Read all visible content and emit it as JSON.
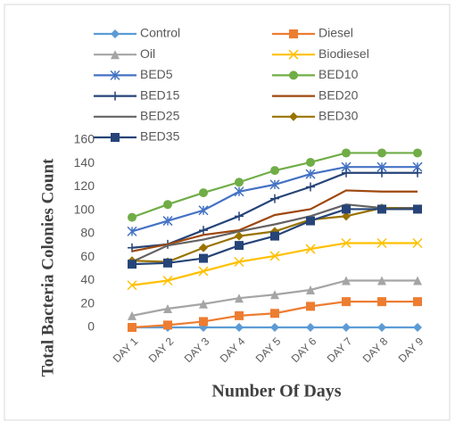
{
  "chart_data": {
    "type": "line",
    "x_label": "Number Of Days",
    "y_label": "Total Bacteria Colonies Count",
    "categories": [
      "DAY 1",
      "DAY 2",
      "DAY 3",
      "DAY 4",
      "DAY 5",
      "DAY 6",
      "DAY 7",
      "DAY 8",
      "DAY 9"
    ],
    "ylim": [
      0,
      160
    ],
    "yticks": [
      0,
      20,
      40,
      60,
      80,
      100,
      120,
      140,
      160
    ],
    "grid": false,
    "series": [
      {
        "name": "Control",
        "color": "#5b9bd5",
        "marker": "diamond",
        "values": [
          0,
          0,
          0,
          0,
          0,
          0,
          0,
          0,
          0
        ]
      },
      {
        "name": "Diesel",
        "color": "#ed7d31",
        "marker": "square",
        "values": [
          0,
          2,
          5,
          10,
          12,
          18,
          22,
          22,
          22
        ]
      },
      {
        "name": "Oil",
        "color": "#a5a5a5",
        "marker": "triangle",
        "values": [
          10,
          16,
          20,
          25,
          28,
          32,
          40,
          40,
          40
        ]
      },
      {
        "name": "Biodiesel",
        "color": "#ffc000",
        "marker": "x",
        "values": [
          36,
          40,
          48,
          56,
          61,
          67,
          72,
          72,
          72
        ]
      },
      {
        "name": "BED5",
        "color": "#4472c4",
        "marker": "star",
        "values": [
          82,
          91,
          100,
          116,
          122,
          131,
          137,
          137,
          137
        ]
      },
      {
        "name": "BED10",
        "color": "#70ad47",
        "marker": "circle",
        "values": [
          94,
          105,
          115,
          124,
          134,
          141,
          149,
          149,
          149
        ]
      },
      {
        "name": "BED15",
        "color": "#264478",
        "marker": "plus",
        "values": [
          68,
          71,
          83,
          95,
          110,
          120,
          132,
          132,
          132
        ]
      },
      {
        "name": "BED20",
        "color": "#9e480e",
        "marker": "none",
        "values": [
          65,
          71,
          79,
          83,
          96,
          101,
          117,
          116,
          116
        ]
      },
      {
        "name": "BED25",
        "color": "#636363",
        "marker": "none",
        "values": [
          56,
          70,
          75,
          82,
          88,
          95,
          105,
          102,
          102
        ]
      },
      {
        "name": "BED30",
        "color": "#997300",
        "marker": "diamond",
        "values": [
          57,
          56,
          68,
          78,
          82,
          92,
          95,
          102,
          101
        ]
      },
      {
        "name": "BED35",
        "color": "#264478",
        "marker": "square",
        "values": [
          54,
          55,
          59,
          70,
          78,
          91,
          101,
          101,
          101
        ]
      }
    ]
  }
}
